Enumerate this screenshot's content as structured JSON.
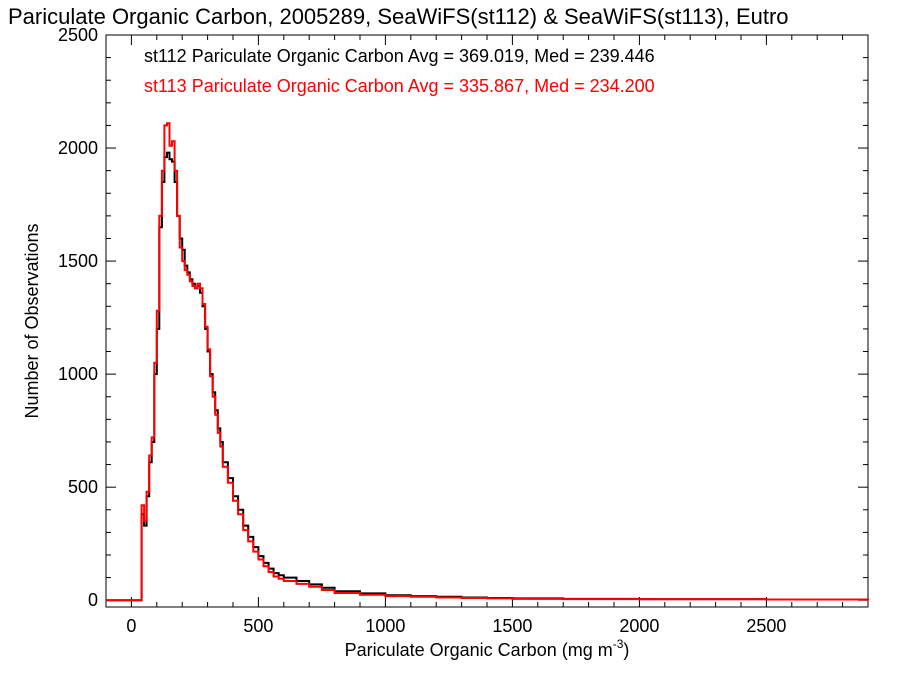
{
  "chart_data": {
    "type": "line",
    "title": "Pariculate Organic Carbon, 2005289, SeaWiFS(st112) & SeaWiFS(st113), Eutro",
    "xlabel": "Pariculate Organic Carbon (mg m",
    "xlabel_superscript": "-3",
    "xlabel_suffix": ")",
    "ylabel": "Number of Observations",
    "xlim": [
      -100,
      2900
    ],
    "ylim": [
      -30,
      2500
    ],
    "x_ticks": [
      0,
      500,
      1000,
      1500,
      2000,
      2500
    ],
    "y_ticks": [
      0,
      500,
      1000,
      1500,
      2000,
      2500
    ],
    "x_tick_labels": [
      "0",
      "500",
      "1000",
      "1500",
      "2000",
      "2500"
    ],
    "y_tick_labels": [
      "0",
      "500",
      "1000",
      "1500",
      "2000",
      "2500"
    ],
    "grid": false,
    "legend_position": "top-left",
    "series": [
      {
        "name": "st112 Pariculate Organic Carbon Avg = 369.019, Med = 239.446",
        "color": "#000000",
        "x": [
          -100,
          0,
          30,
          40,
          50,
          60,
          70,
          80,
          90,
          100,
          110,
          120,
          130,
          140,
          150,
          160,
          170,
          180,
          190,
          200,
          210,
          220,
          230,
          240,
          250,
          260,
          270,
          280,
          290,
          300,
          310,
          320,
          330,
          340,
          350,
          360,
          380,
          400,
          420,
          440,
          460,
          480,
          500,
          520,
          540,
          560,
          580,
          600,
          650,
          700,
          750,
          800,
          900,
          1000,
          1100,
          1200,
          1300,
          1400,
          1500,
          1700,
          2000,
          2500,
          2900
        ],
        "values": [
          0,
          0,
          0,
          380,
          330,
          460,
          610,
          700,
          1000,
          1200,
          1650,
          1850,
          1960,
          1980,
          1950,
          1940,
          1850,
          1700,
          1600,
          1550,
          1480,
          1450,
          1420,
          1400,
          1380,
          1390,
          1360,
          1300,
          1200,
          1100,
          1000,
          920,
          840,
          760,
          700,
          610,
          540,
          460,
          400,
          330,
          280,
          235,
          195,
          165,
          140,
          120,
          110,
          100,
          85,
          70,
          55,
          40,
          30,
          22,
          18,
          15,
          12,
          10,
          8,
          6,
          5,
          3,
          2
        ]
      },
      {
        "name": "st113 Pariculate Organic Carbon Avg = 335.867, Med = 234.200",
        "color": "#ff0000",
        "x": [
          -100,
          0,
          30,
          40,
          50,
          60,
          70,
          80,
          90,
          100,
          110,
          120,
          130,
          140,
          150,
          160,
          170,
          180,
          190,
          200,
          210,
          220,
          230,
          240,
          250,
          260,
          270,
          280,
          290,
          300,
          310,
          320,
          330,
          340,
          350,
          360,
          380,
          400,
          420,
          440,
          460,
          480,
          500,
          520,
          540,
          560,
          580,
          600,
          650,
          700,
          750,
          800,
          900,
          1000,
          1100,
          1200,
          1300,
          1400,
          1500,
          1700,
          2000,
          2500,
          2900
        ],
        "values": [
          0,
          0,
          0,
          420,
          350,
          480,
          640,
          720,
          1050,
          1280,
          1700,
          1900,
          2100,
          2110,
          2010,
          2030,
          1900,
          1700,
          1560,
          1500,
          1460,
          1440,
          1410,
          1390,
          1380,
          1400,
          1380,
          1310,
          1210,
          1110,
          990,
          900,
          820,
          740,
          680,
          590,
          520,
          440,
          380,
          310,
          260,
          215,
          180,
          150,
          125,
          105,
          95,
          85,
          72,
          60,
          45,
          32,
          24,
          18,
          15,
          12,
          10,
          8,
          6,
          5,
          4,
          3,
          2
        ]
      }
    ]
  }
}
